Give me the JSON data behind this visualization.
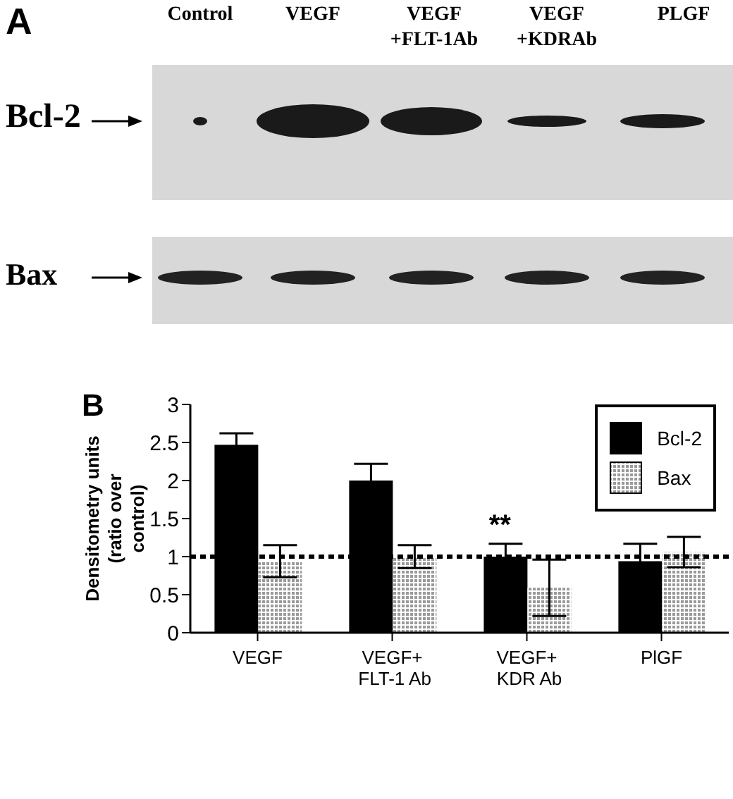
{
  "chart_data": {
    "type": "bar",
    "ylabel": "Densitometry units (ratio over control)",
    "categories": [
      "VEGF",
      "VEGF+\nFLT-1 Ab",
      "VEGF+\nKDR Ab",
      "PlGF"
    ],
    "series": [
      {
        "name": "Bcl-2",
        "color": "#000000",
        "values": [
          2.47,
          2.0,
          1.0,
          0.94
        ],
        "errors": [
          0.15,
          0.22,
          0.17,
          0.23
        ]
      },
      {
        "name": "Bax",
        "color": "#9a9a9a",
        "values": [
          0.94,
          1.0,
          0.59,
          1.06
        ],
        "errors": [
          0.21,
          0.15,
          0.37,
          0.2
        ]
      }
    ],
    "ylim": [
      0,
      3
    ],
    "yticks": [
      0,
      0.5,
      1,
      1.5,
      2,
      2.5,
      3
    ],
    "legend": "top right",
    "ref_lines": [
      {
        "axis": "y",
        "value": 1,
        "line_style": "dotted",
        "color": "#000000"
      }
    ],
    "annotations": [
      "A",
      "Control",
      "VEGF",
      "VEGF\n+FLT-1Ab",
      "VEGF\n+KDRAb",
      "PLGF",
      "Bcl-2",
      "Bax",
      "B",
      {
        "text": "**",
        "x": "VEGF+\nKDR Ab",
        "y": 1.2
      }
    ]
  }
}
